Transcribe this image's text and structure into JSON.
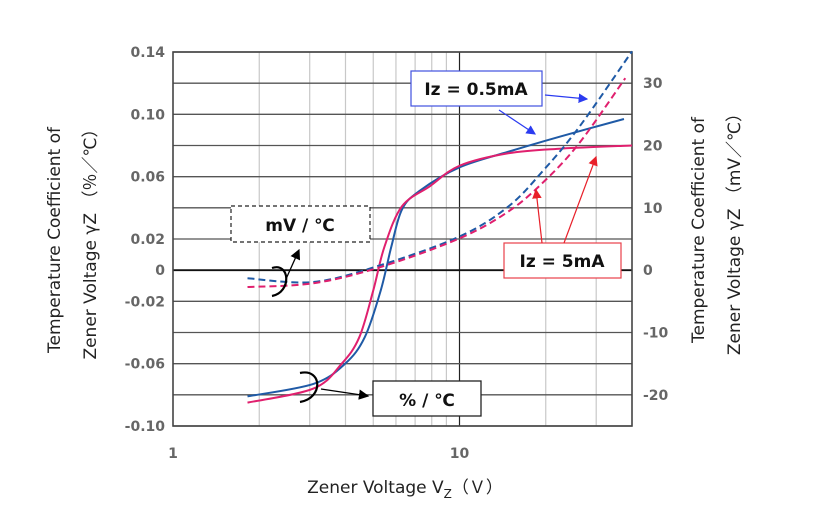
{
  "chart_data": {
    "type": "line",
    "title": "",
    "xlabel": "Zener Voltage V",
    "xlabel_sub": "Z",
    "xlabel_unit": "（Ｖ）",
    "ylabel_left_line1": "Temperature Coefficient of",
    "ylabel_left_line2": "Zener Voltage γZ （％／℃）",
    "ylabel_right_line1": "Temperature Coefficient of",
    "ylabel_right_line2": "Zener Voltage γZ （mV／℃）",
    "x_scale": "log",
    "xlim": [
      1,
      40
    ],
    "ylim_left": [
      -0.1,
      0.14
    ],
    "ylim_right": [
      -25,
      35
    ],
    "grid": true,
    "x_tick_labels": [
      "1",
      "10"
    ],
    "y_left_tick_labels": [
      "0.14",
      "0.10",
      "0.06",
      "0.02",
      "0",
      "-0.02",
      "-0.06",
      "-0.10"
    ],
    "y_right_tick_labels": [
      "30",
      "20",
      "10",
      "0",
      "-10",
      "-20"
    ],
    "series": [
      {
        "name": "Iz = 0.5mA",
        "unit": "%/°C",
        "axis": "left",
        "style": "solid",
        "color": "#1f5aa6",
        "x": [
          1.82,
          3.09,
          3.99,
          4.67,
          5.31,
          5.78,
          6.3,
          7.27,
          10,
          14.8,
          22.7,
          37.5
        ],
        "y": [
          -0.081,
          -0.073,
          -0.06,
          -0.043,
          -0.013,
          0.015,
          0.039,
          0.051,
          0.066,
          0.076,
          0.086,
          0.097
        ]
      },
      {
        "name": "Iz = 5mA",
        "unit": "%/°C",
        "axis": "left",
        "style": "solid",
        "color": "#e0206e",
        "x": [
          1.82,
          3.09,
          3.88,
          4.47,
          5.0,
          5.47,
          6.3,
          7.9,
          10,
          14.8,
          22.7,
          40
        ],
        "y": [
          -0.085,
          -0.076,
          -0.06,
          -0.043,
          -0.013,
          0.015,
          0.041,
          0.054,
          0.067,
          0.075,
          0.078,
          0.08
        ]
      },
      {
        "name": "Iz = 0.5mA",
        "unit": "mV/°C",
        "axis": "right",
        "style": "dashed",
        "color": "#1f5aa6",
        "x": [
          1.82,
          3.09,
          5.3,
          10,
          14.8,
          19.7,
          26.2,
          40
        ],
        "y": [
          -1.3,
          -1.9,
          0.8,
          5.4,
          10.2,
          16.1,
          23.0,
          35.1
        ]
      },
      {
        "name": "Iz = 5mA",
        "unit": "mV/°C",
        "axis": "right",
        "style": "dashed",
        "color": "#e0206e",
        "x": [
          1.82,
          3.09,
          5.3,
          10,
          14.8,
          19.7,
          26.2,
          37.9
        ],
        "y": [
          -2.7,
          -2.1,
          0.5,
          5.1,
          9.4,
          14.2,
          20.4,
          30.8
        ]
      }
    ],
    "annotations": {
      "iz_low": "Iz = 0.5mA",
      "iz_high": "Iz = 5mA",
      "mv_unit": "mV / ℃",
      "pct_unit": "% / ℃"
    }
  }
}
